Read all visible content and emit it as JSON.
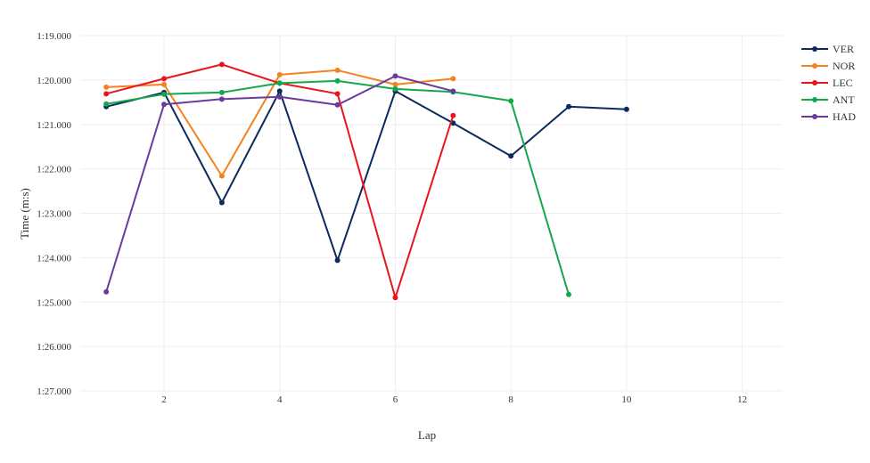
{
  "chart_data": {
    "type": "line",
    "xlabel": "Lap",
    "ylabel": "Time (m:s)",
    "xlim": [
      0.55,
      12.7
    ],
    "ylim": [
      79,
      87
    ],
    "y_reversed": true,
    "x_ticks": [
      2,
      4,
      6,
      8,
      10,
      12
    ],
    "y_ticks": [
      79,
      80,
      81,
      82,
      83,
      84,
      85,
      86,
      87
    ],
    "y_tick_labels": [
      "1:19.000",
      "1:20.000",
      "1:21.000",
      "1:22.000",
      "1:23.000",
      "1:24.000",
      "1:25.000",
      "1:26.000",
      "1:27.000"
    ],
    "grid": true,
    "legend_position": "top-right",
    "series": [
      {
        "name": "VER",
        "color": "#0d2a5c",
        "x": [
          1,
          2,
          3,
          4,
          5,
          6,
          7,
          8,
          9,
          10
        ],
        "y": [
          80.6,
          80.28,
          82.76,
          80.25,
          84.06,
          80.25,
          80.97,
          81.71,
          80.6,
          80.66
        ]
      },
      {
        "name": "NOR",
        "color": "#f58220",
        "x": [
          1,
          2,
          3,
          4,
          5,
          6,
          7
        ],
        "y": [
          80.16,
          80.1,
          82.16,
          79.88,
          79.78,
          80.1,
          79.97
        ]
      },
      {
        "name": "LEC",
        "color": "#e8141e",
        "x": [
          1,
          2,
          3,
          4,
          5,
          6,
          7
        ],
        "y": [
          80.31,
          79.97,
          79.65,
          80.07,
          80.31,
          84.9,
          80.8
        ]
      },
      {
        "name": "ANT",
        "color": "#12a84b",
        "x": [
          1,
          2,
          3,
          4,
          5,
          6,
          7,
          8,
          9
        ],
        "y": [
          80.54,
          80.32,
          80.28,
          80.07,
          80.02,
          80.2,
          80.27,
          80.47,
          84.83
        ]
      },
      {
        "name": "HAD",
        "color": "#6a3a9c",
        "x": [
          1,
          2,
          3,
          4,
          5,
          6,
          7
        ],
        "y": [
          84.77,
          80.55,
          80.43,
          80.38,
          80.56,
          79.91,
          80.25
        ]
      }
    ]
  }
}
